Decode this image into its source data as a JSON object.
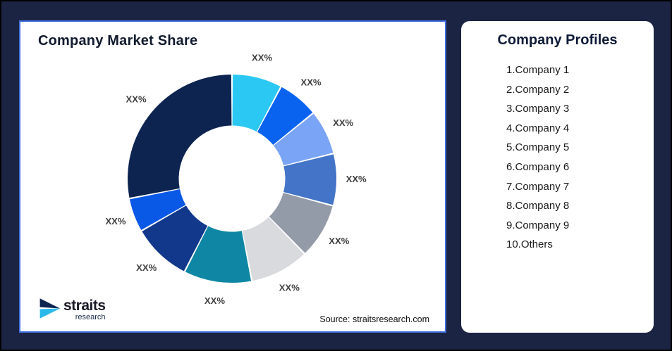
{
  "frame": {
    "background": "#1B2442",
    "border_color": "#000000"
  },
  "chart_panel": {
    "title": "Company Market Share",
    "source": "Source: straitsresearch.com",
    "border_color": "#4070E0",
    "background": "#FFFFFF"
  },
  "logo": {
    "text": "straits",
    "subtext": "research",
    "icon_top_color": "#0D2350",
    "icon_bottom_color": "#29B9EA"
  },
  "profiles_panel": {
    "title": "Company Profiles",
    "items": [
      "1.Company 1",
      "2.Company 2",
      "3.Company 3",
      "4.Company 4",
      "5.Company 5",
      "6.Company 6",
      "7.Company 7",
      "8.Company 8",
      "9.Company 9",
      "10.Others"
    ]
  },
  "chart_data": {
    "type": "pie",
    "subtype": "donut",
    "title": "Company Market Share",
    "start_angle_deg": 0,
    "direction": "clockwise",
    "inner_radius_ratio": 0.51,
    "label_color": "#404040",
    "segments": [
      {
        "name": "Company 1",
        "label": "XX%",
        "angle_deg": 28,
        "color": "#2BC8F4"
      },
      {
        "name": "Company 2",
        "label": "XX%",
        "angle_deg": 23,
        "color": "#0A63EF"
      },
      {
        "name": "Company 3",
        "label": "XX%",
        "angle_deg": 25,
        "color": "#7AA4F6"
      },
      {
        "name": "Company 4",
        "label": "XX%",
        "angle_deg": 29,
        "color": "#4374C8"
      },
      {
        "name": "Company 5",
        "label": "XX%",
        "angle_deg": 31,
        "color": "#949BA8"
      },
      {
        "name": "Company 6",
        "label": "XX%",
        "angle_deg": 33,
        "color": "#D8DADE"
      },
      {
        "name": "Company 7",
        "label": "XX%",
        "angle_deg": 38,
        "color": "#0F87A4"
      },
      {
        "name": "Company 8",
        "label": "XX%",
        "angle_deg": 33,
        "color": "#11388A"
      },
      {
        "name": "Company 9",
        "label": "XX%",
        "angle_deg": 19,
        "color": "#0A58E6"
      },
      {
        "name": "Others",
        "label": "XX%",
        "angle_deg": 101,
        "color": "#0D2451"
      }
    ]
  }
}
